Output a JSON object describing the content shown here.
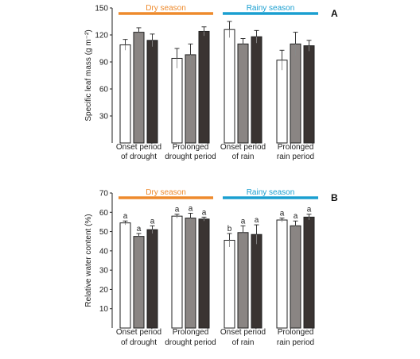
{
  "chart_data": [
    {
      "type": "bar",
      "panel_label": "A",
      "ylabel": "Specific leaf mass (g m⁻²)",
      "ylim": [
        0,
        150
      ],
      "yticks": [
        30,
        60,
        90,
        120,
        150
      ],
      "categories": [
        [
          "Onset period",
          "of drought"
        ],
        [
          "Prolonged",
          "drought period"
        ],
        [
          "Onset period",
          "of rain"
        ],
        [
          "Prolonged",
          "rain period"
        ]
      ],
      "season_bars": [
        {
          "label": "Dry season",
          "color": "#ee8a2c",
          "spans": [
            0,
            1
          ]
        },
        {
          "label": "Rainy season",
          "color": "#1a9fd0",
          "spans": [
            2,
            3
          ]
        }
      ],
      "series_colors": [
        "#ffffff",
        "#8a8583",
        "#3a3432"
      ],
      "values": [
        [
          109,
          123,
          114
        ],
        [
          94,
          98,
          124
        ],
        [
          126,
          110,
          118
        ],
        [
          92,
          110,
          108
        ]
      ],
      "errors": [
        [
          6,
          5,
          7
        ],
        [
          11,
          12,
          5
        ],
        [
          9,
          6,
          7
        ],
        [
          11,
          13,
          6
        ]
      ],
      "letters": [
        [
          "",
          "",
          ""
        ],
        [
          "",
          "",
          ""
        ],
        [
          "",
          "",
          ""
        ],
        [
          "",
          "",
          ""
        ]
      ]
    },
    {
      "type": "bar",
      "panel_label": "B",
      "ylabel": "Relative water content (%)",
      "ylim": [
        0,
        70
      ],
      "yticks": [
        10,
        20,
        30,
        40,
        50,
        60,
        70
      ],
      "categories": [
        [
          "Onset period",
          "of drought"
        ],
        [
          "Prolonged",
          "drought period"
        ],
        [
          "Onset period",
          "of rain"
        ],
        [
          "Prolonged",
          "rain period"
        ]
      ],
      "season_bars": [
        {
          "label": "Dry season",
          "color": "#ee8a2c",
          "spans": [
            0,
            1
          ]
        },
        {
          "label": "Rainy season",
          "color": "#1a9fd0",
          "spans": [
            2,
            3
          ]
        }
      ],
      "series_colors": [
        "#ffffff",
        "#8a8583",
        "#3a3432"
      ],
      "values": [
        [
          54.5,
          47.5,
          51
        ],
        [
          58,
          57,
          56.5
        ],
        [
          45.5,
          49.5,
          48.5
        ],
        [
          56,
          53,
          57.5
        ]
      ],
      "errors": [
        [
          1,
          1.5,
          2
        ],
        [
          1,
          2.5,
          1
        ],
        [
          3.5,
          3.5,
          5
        ],
        [
          1,
          2.5,
          1.5
        ]
      ],
      "letters": [
        [
          "a",
          "a",
          "a"
        ],
        [
          "a",
          "a",
          "a"
        ],
        [
          "b",
          "a",
          "a"
        ],
        [
          "a",
          "a",
          "a"
        ]
      ]
    }
  ]
}
